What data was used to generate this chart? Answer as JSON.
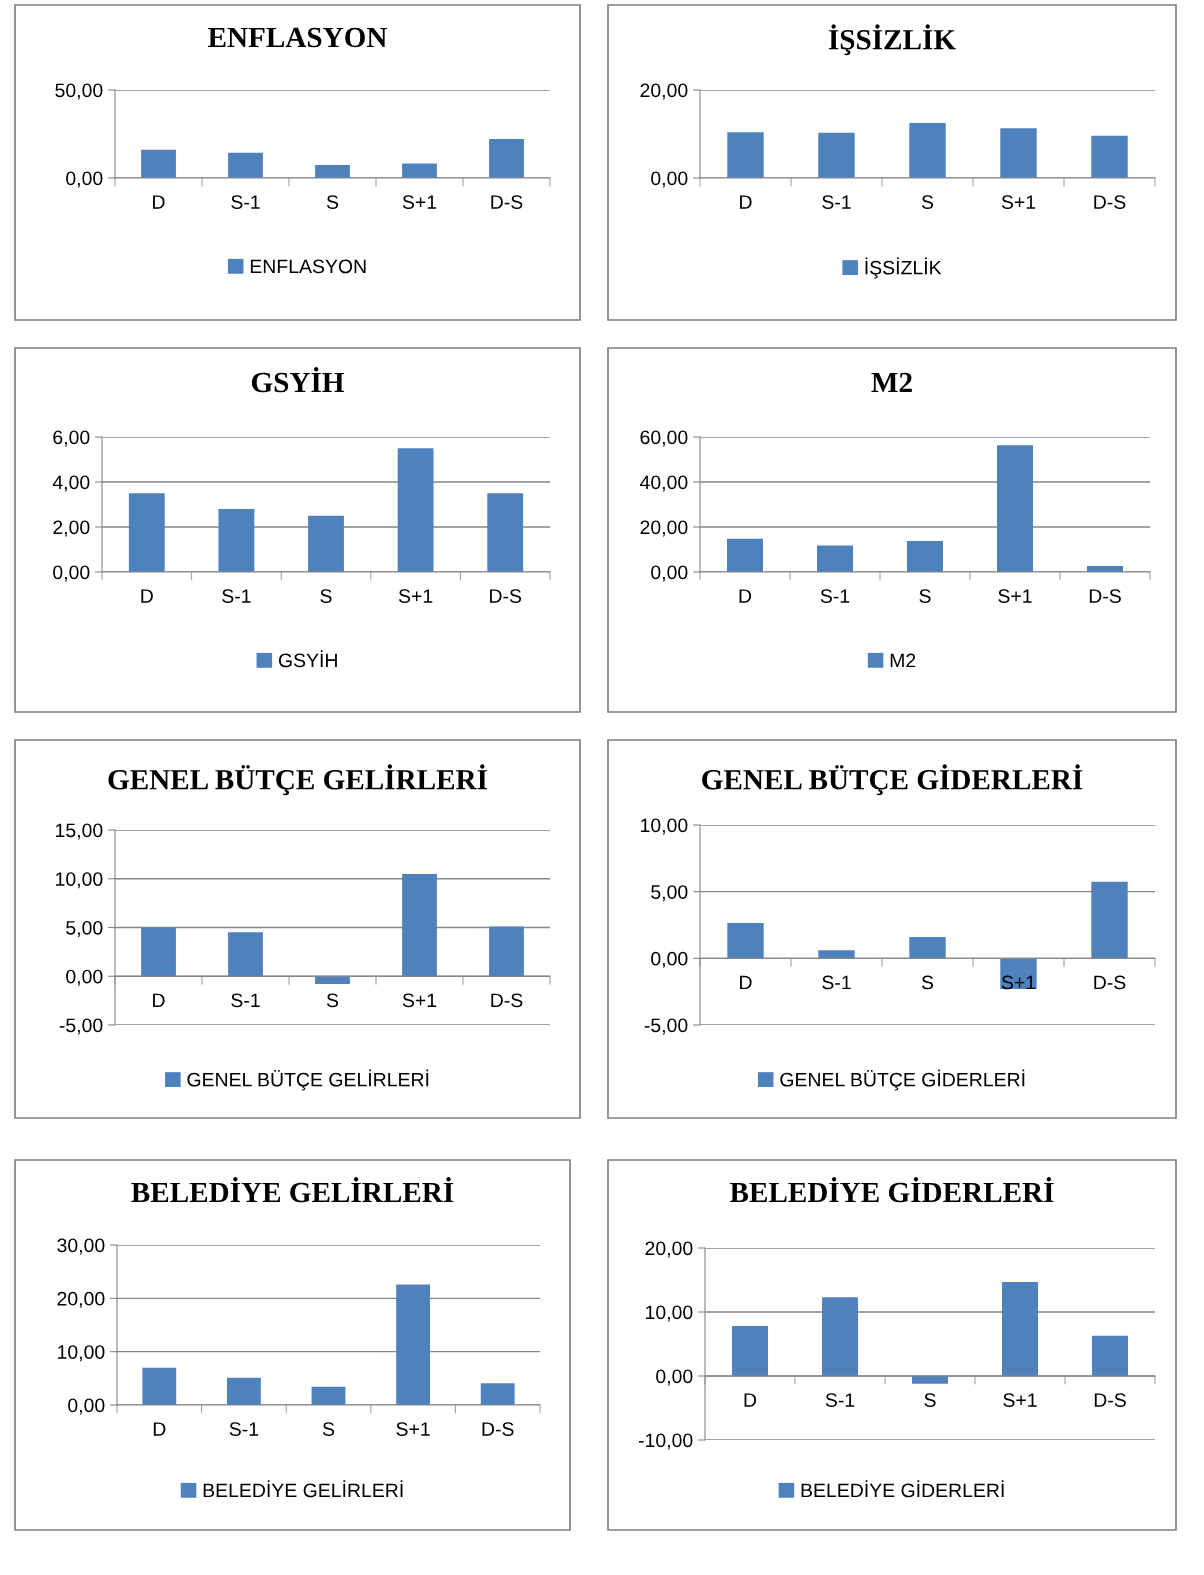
{
  "chart_data": [
    {
      "type": "bar",
      "title": "ENFLASYON",
      "categories": [
        "D",
        "S-1",
        "S",
        "S+1",
        "D-S"
      ],
      "series": [
        {
          "name": "ENFLASYON",
          "color": "#4f81bd",
          "values": [
            16.1,
            14.3,
            7.4,
            8.3,
            22.2
          ]
        }
      ],
      "ylim": [
        0,
        50
      ],
      "yticks": [
        {
          "value": 0,
          "label": "0,00"
        },
        {
          "value": 50,
          "label": "50,00"
        }
      ],
      "grid": "y",
      "legend": "bottom"
    },
    {
      "type": "bar",
      "title": "İŞSİZLİK",
      "categories": [
        "D",
        "S-1",
        "S",
        "S+1",
        "D-S"
      ],
      "series": [
        {
          "name": "İŞSİZLİK",
          "color": "#4f81bd",
          "values": [
            10.4,
            10.3,
            12.5,
            11.3,
            9.6
          ]
        }
      ],
      "ylim": [
        0,
        20
      ],
      "yticks": [
        {
          "value": 0,
          "label": "0,00"
        },
        {
          "value": 20,
          "label": "20,00"
        }
      ],
      "grid": "y",
      "legend": "bottom"
    },
    {
      "type": "bar",
      "title": "GSYİH",
      "categories": [
        "D",
        "S-1",
        "S",
        "S+1",
        "D-S"
      ],
      "series": [
        {
          "name": "GSYİH",
          "color": "#4f81bd",
          "values": [
            3.5,
            2.8,
            2.5,
            5.5,
            3.5
          ]
        }
      ],
      "ylim": [
        0,
        6
      ],
      "yticks": [
        {
          "value": 0,
          "label": "0,00"
        },
        {
          "value": 2,
          "label": "2,00"
        },
        {
          "value": 4,
          "label": "4,00"
        },
        {
          "value": 6,
          "label": "6,00"
        }
      ],
      "grid": "y",
      "legend": "bottom"
    },
    {
      "type": "bar",
      "title": "M2",
      "categories": [
        "D",
        "S-1",
        "S",
        "S+1",
        "D-S"
      ],
      "series": [
        {
          "name": "M2",
          "color": "#4f81bd",
          "values": [
            14.8,
            11.8,
            13.8,
            56.3,
            2.7
          ]
        }
      ],
      "ylim": [
        0,
        60
      ],
      "yticks": [
        {
          "value": 0,
          "label": "0,00"
        },
        {
          "value": 20,
          "label": "20,00"
        },
        {
          "value": 40,
          "label": "40,00"
        },
        {
          "value": 60,
          "label": "60,00"
        }
      ],
      "grid": "y",
      "legend": "bottom"
    },
    {
      "type": "bar",
      "title": "GENEL BÜTÇE GELİRLERİ",
      "categories": [
        "D",
        "S-1",
        "S",
        "S+1",
        "D-S"
      ],
      "series": [
        {
          "name": "GENEL BÜTÇE GELİRLERİ",
          "color": "#4f81bd",
          "values": [
            5.0,
            4.5,
            -0.8,
            10.5,
            5.1
          ]
        }
      ],
      "ylim": [
        -5,
        15
      ],
      "yticks": [
        {
          "value": -5,
          "label": "-5,00"
        },
        {
          "value": 0,
          "label": "0,00"
        },
        {
          "value": 5,
          "label": "5,00"
        },
        {
          "value": 10,
          "label": "10,00"
        },
        {
          "value": 15,
          "label": "15,00"
        }
      ],
      "grid": "y",
      "legend": "bottom"
    },
    {
      "type": "bar",
      "title": "GENEL BÜTÇE GİDERLERİ",
      "categories": [
        "D",
        "S-1",
        "S",
        "S+1",
        "D-S"
      ],
      "series": [
        {
          "name": "GENEL BÜTÇE GİDERLERİ",
          "color": "#4f81bd",
          "values": [
            2.65,
            0.6,
            1.6,
            -2.3,
            5.75
          ]
        }
      ],
      "ylim": [
        -5,
        10
      ],
      "yticks": [
        {
          "value": -5,
          "label": "-5,00"
        },
        {
          "value": 0,
          "label": "0,00"
        },
        {
          "value": 5,
          "label": "5,00"
        },
        {
          "value": 10,
          "label": "10,00"
        }
      ],
      "grid": "y",
      "legend": "bottom"
    },
    {
      "type": "bar",
      "title": "BELEDİYE GELİRLERİ",
      "categories": [
        "D",
        "S-1",
        "S",
        "S+1",
        "D-S"
      ],
      "series": [
        {
          "name": "BELEDİYE GELİRLERİ",
          "color": "#4f81bd",
          "values": [
            7.0,
            5.1,
            3.4,
            22.6,
            4.1
          ]
        }
      ],
      "ylim": [
        0,
        30
      ],
      "yticks": [
        {
          "value": 0,
          "label": "0,00"
        },
        {
          "value": 10,
          "label": "10,00"
        },
        {
          "value": 20,
          "label": "20,00"
        },
        {
          "value": 30,
          "label": "30,00"
        }
      ],
      "grid": "y",
      "legend": "bottom"
    },
    {
      "type": "bar",
      "title": "BELEDİYE GİDERLERİ",
      "categories": [
        "D",
        "S-1",
        "S",
        "S+1",
        "D-S"
      ],
      "series": [
        {
          "name": "BELEDİYE GİDERLERİ",
          "color": "#4f81bd",
          "values": [
            7.8,
            12.3,
            -1.2,
            14.7,
            6.3
          ]
        }
      ],
      "ylim": [
        -10,
        20
      ],
      "yticks": [
        {
          "value": -10,
          "label": "-10,00"
        },
        {
          "value": 0,
          "label": "0,00"
        },
        {
          "value": 10,
          "label": "10,00"
        },
        {
          "value": 20,
          "label": "20,00"
        }
      ],
      "grid": "y",
      "legend": "bottom"
    }
  ]
}
